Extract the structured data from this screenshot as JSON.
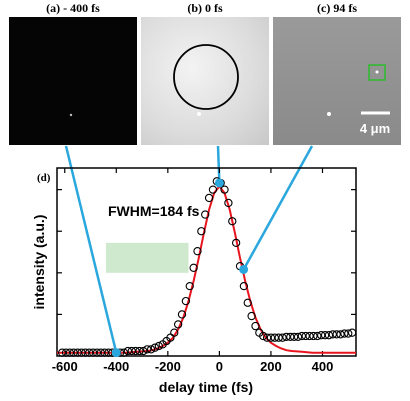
{
  "panels": [
    {
      "label": "(a) - 400 fs"
    },
    {
      "label": "(b) 0 fs"
    },
    {
      "label": "(c) 94 fs"
    }
  ],
  "scale_bar_label": "4 μm",
  "colors": {
    "data_markers": "#000000",
    "fit_curve": "#e8141e",
    "connector": "#2aa7dd",
    "highlight_box": "#2dbb2d",
    "shaded_band": "#cfe9cf"
  },
  "chart_data": {
    "type": "scatter",
    "panel_label": "(d)",
    "annotation": "FWHM=184 fs",
    "xlabel": "delay time (fs)",
    "ylabel": "intensity (a.u.)",
    "xlim": [
      -630,
      530
    ],
    "ylim": [
      0,
      1.13
    ],
    "xticks": [
      -600,
      -400,
      -200,
      0,
      200,
      400
    ],
    "xticklabels": [
      "-600",
      "-400",
      "-200",
      "0",
      "200",
      "400"
    ],
    "grid": false,
    "series": [
      {
        "marker": "open-circle",
        "x": [
          -610,
          -595,
          -580,
          -565,
          -550,
          -535,
          -520,
          -505,
          -490,
          -475,
          -460,
          -445,
          -430,
          -415,
          -400,
          -385,
          -370,
          -355,
          -340,
          -325,
          -310,
          -295,
          -280,
          -265,
          -250,
          -235,
          -220,
          -205,
          -190,
          -175,
          -160,
          -145,
          -130,
          -115,
          -100,
          -85,
          -70,
          -55,
          -40,
          -25,
          -10,
          5,
          20,
          35,
          50,
          65,
          80,
          95,
          110,
          125,
          140,
          155,
          170,
          185,
          200,
          215,
          230,
          245,
          260,
          275,
          290,
          305,
          320,
          335,
          350,
          365,
          380,
          395,
          410,
          425,
          440,
          455,
          470,
          485,
          500,
          515
        ],
        "y": [
          0.02,
          0.02,
          0.02,
          0.02,
          0.02,
          0.02,
          0.02,
          0.02,
          0.02,
          0.02,
          0.02,
          0.02,
          0.02,
          0.02,
          0.02,
          0.02,
          0.02,
          0.03,
          0.03,
          0.03,
          0.03,
          0.03,
          0.04,
          0.04,
          0.05,
          0.06,
          0.07,
          0.09,
          0.11,
          0.14,
          0.19,
          0.25,
          0.33,
          0.42,
          0.53,
          0.63,
          0.75,
          0.85,
          0.95,
          1.0,
          1.05,
          1.04,
          1.0,
          0.92,
          0.81,
          0.68,
          0.54,
          0.42,
          0.32,
          0.24,
          0.18,
          0.14,
          0.12,
          0.11,
          0.11,
          0.11,
          0.11,
          0.11,
          0.115,
          0.115,
          0.115,
          0.115,
          0.12,
          0.12,
          0.12,
          0.12,
          0.12,
          0.125,
          0.125,
          0.125,
          0.13,
          0.13,
          0.13,
          0.135,
          0.135,
          0.14
        ]
      },
      {
        "marker": "line",
        "x": [
          -630,
          -600,
          -560,
          -520,
          -480,
          -440,
          -400,
          -360,
          -320,
          -280,
          -260,
          -240,
          -220,
          -200,
          -180,
          -160,
          -140,
          -120,
          -100,
          -80,
          -60,
          -40,
          -20,
          0,
          20,
          40,
          60,
          80,
          100,
          120,
          140,
          160,
          180,
          200,
          220,
          240,
          260,
          280,
          320,
          360,
          400,
          440,
          480,
          520,
          530
        ],
        "y": [
          0.02,
          0.02,
          0.02,
          0.02,
          0.02,
          0.02,
          0.02,
          0.02,
          0.025,
          0.03,
          0.035,
          0.045,
          0.06,
          0.08,
          0.11,
          0.16,
          0.23,
          0.33,
          0.45,
          0.59,
          0.74,
          0.88,
          0.98,
          1.02,
          0.98,
          0.88,
          0.74,
          0.59,
          0.45,
          0.33,
          0.23,
          0.16,
          0.11,
          0.08,
          0.06,
          0.045,
          0.035,
          0.03,
          0.025,
          0.02,
          0.02,
          0.02,
          0.02,
          0.02,
          0.02
        ]
      }
    ],
    "highlighted_points": [
      {
        "x": -400,
        "y": 0.02
      },
      {
        "x": 0,
        "y": 1.04
      },
      {
        "x": 94,
        "y": 0.52
      }
    ],
    "shaded_band": {
      "x": [
        -440,
        -120
      ],
      "y": [
        0.5,
        0.68
      ]
    }
  }
}
